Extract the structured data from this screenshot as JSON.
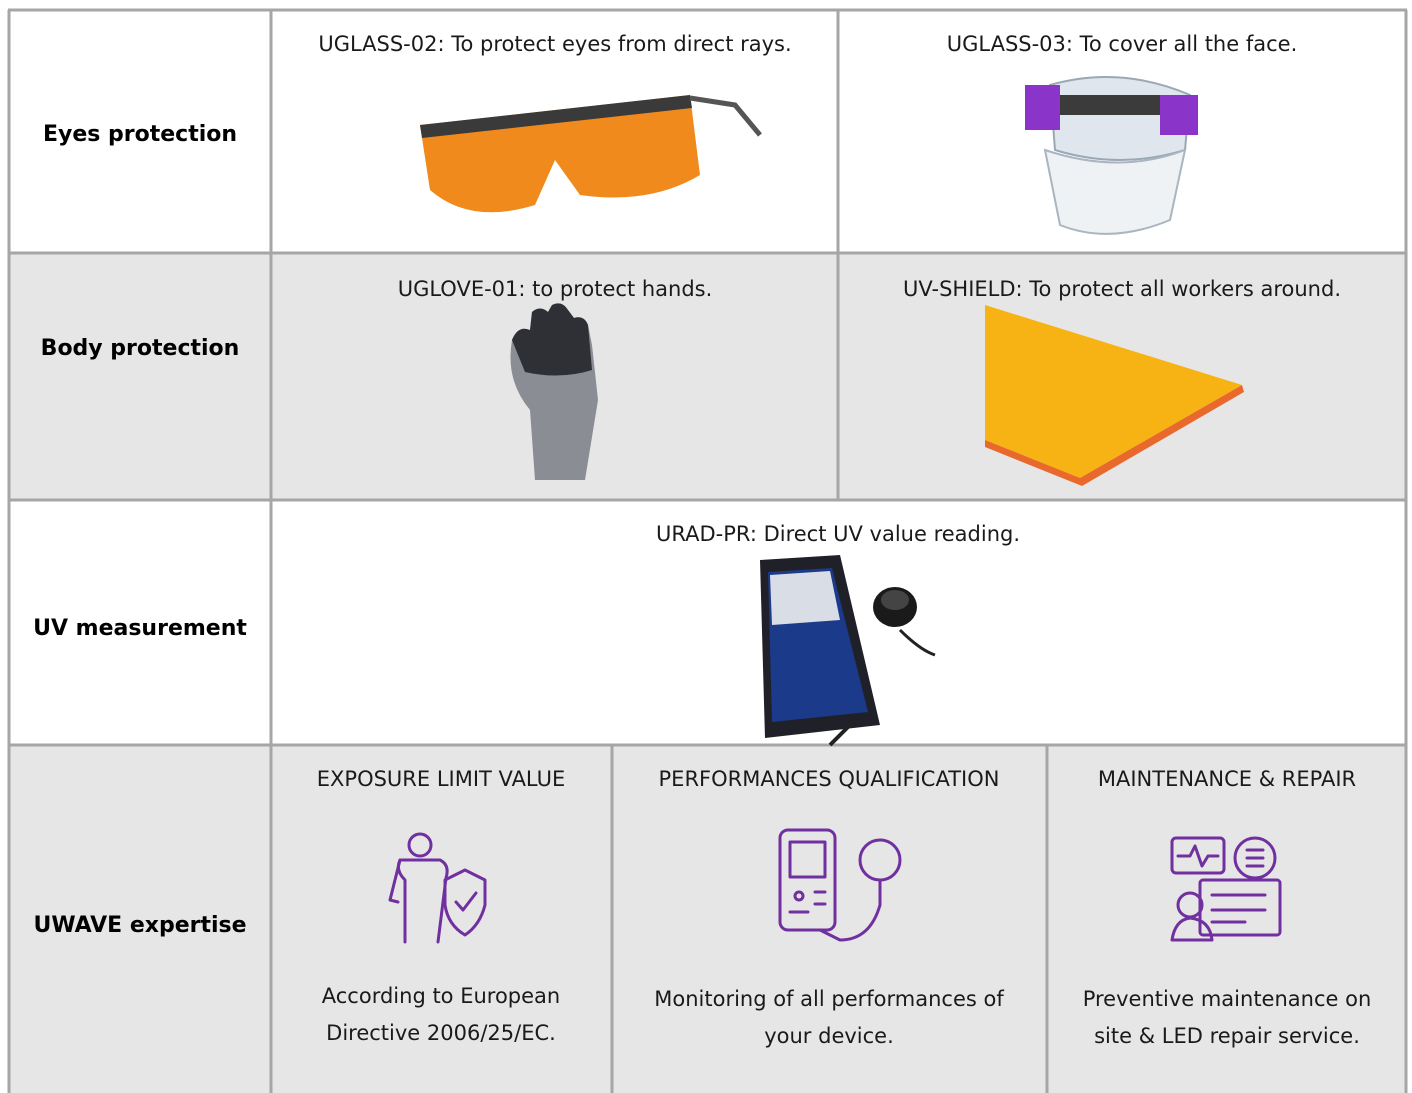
{
  "rows": [
    {
      "label": "Eyes protection",
      "items": [
        {
          "caption": "UGLASS-02: To protect eyes from direct rays."
        },
        {
          "caption": "UGLASS-03: To cover all the face."
        }
      ]
    },
    {
      "label": "Body protection",
      "items": [
        {
          "caption": "UGLOVE-01: to protect hands."
        },
        {
          "caption": "UV-SHIELD: To protect all workers around."
        }
      ]
    },
    {
      "label": "UV measurement",
      "items": [
        {
          "caption": "URAD-PR: Direct UV value reading."
        }
      ]
    },
    {
      "label": "UWAVE expertise",
      "items": [
        {
          "title": "EXPOSURE LIMIT VALUE",
          "text": [
            "According to European",
            "Directive 2006/25/EC."
          ]
        },
        {
          "title": "PERFORMANCES QUALIFICATION",
          "text": [
            "Monitoring of all performances of",
            "your device."
          ]
        },
        {
          "title": "MAINTENANCE & REPAIR",
          "text": [
            "Preventive maintenance on",
            "site & LED repair service."
          ]
        }
      ]
    }
  ]
}
